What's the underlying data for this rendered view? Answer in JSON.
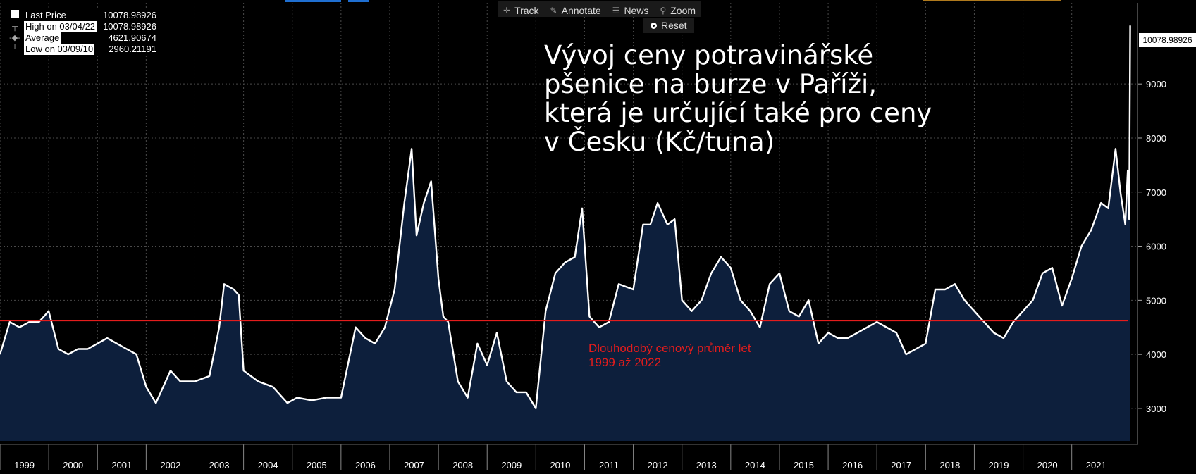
{
  "toolbar": {
    "track_label": "Track",
    "annotate_label": "Annotate",
    "news_label": "News",
    "zoom_label": "Zoom",
    "reset_label": "Reset"
  },
  "legend": {
    "items": [
      {
        "label": "Last Price",
        "value": "10078.98926"
      },
      {
        "label": "High on 03/04/22",
        "value": "10078.98926"
      },
      {
        "label": "Average",
        "value": "4621.90674"
      },
      {
        "label": "Low on 03/09/10",
        "value": "2960.21191"
      }
    ]
  },
  "title_text": "Vývoj ceny potravinářské\npšenice na burze v Paříži,\nkterá je určující také pro ceny\nv Česku (Kč/tuna)",
  "avg_annotation": "Dlouhodobý cenový průměr let\n1999 až 2022",
  "last_price_flag": "10078.98926",
  "colors": {
    "background": "#000000",
    "line": "#ffffff",
    "area": "#0d1f3c",
    "average": "#e41c1c",
    "grid": "#4a4a4a"
  },
  "chart_data": {
    "type": "area",
    "x_unit": "year",
    "xlim": [
      1999,
      2022.35
    ],
    "ylim": [
      2400,
      10500
    ],
    "yticks": [
      3000,
      4000,
      5000,
      6000,
      7000,
      8000,
      9000
    ],
    "ytick_labels": [
      "3000",
      "4000",
      "5000",
      "6000",
      "7000",
      "8000",
      "9000"
    ],
    "xtick_labels": [
      "1999",
      "2000",
      "2001",
      "2002",
      "2003",
      "2004",
      "2005",
      "2006",
      "2007",
      "2008",
      "2009",
      "2010",
      "2011",
      "2012",
      "2013",
      "2014",
      "2015",
      "2016",
      "2017",
      "2018",
      "2019",
      "2020",
      "2021"
    ],
    "grid": true,
    "average": 4621.90674,
    "series": [
      {
        "x": [
          1999.0,
          1999.2,
          1999.4,
          1999.6,
          1999.8,
          2000.0,
          2000.2,
          2000.4,
          2000.6,
          2000.8,
          2001.0,
          2001.2,
          2001.4,
          2001.6,
          2001.8,
          2002.0,
          2002.2,
          2002.5,
          2002.7,
          2003.0,
          2003.3,
          2003.5,
          2003.6,
          2003.8,
          2003.9,
          2004.0,
          2004.3,
          2004.6,
          2004.9,
          2005.1,
          2005.4,
          2005.7,
          2006.0,
          2006.3,
          2006.5,
          2006.7,
          2006.9,
          2007.1,
          2007.3,
          2007.45,
          2007.55,
          2007.7,
          2007.85,
          2008.0,
          2008.1,
          2008.2,
          2008.4,
          2008.6,
          2008.8,
          2009.0,
          2009.2,
          2009.4,
          2009.6,
          2009.8,
          2010.0,
          2010.2,
          2010.4,
          2010.6,
          2010.8,
          2010.95,
          2011.1,
          2011.3,
          2011.5,
          2011.7,
          2012.0,
          2012.2,
          2012.35,
          2012.5,
          2012.7,
          2012.85,
          2013.0,
          2013.2,
          2013.4,
          2013.6,
          2013.8,
          2014.0,
          2014.2,
          2014.4,
          2014.6,
          2014.8,
          2015.0,
          2015.2,
          2015.4,
          2015.6,
          2015.8,
          2016.0,
          2016.2,
          2016.4,
          2016.6,
          2016.8,
          2017.0,
          2017.2,
          2017.4,
          2017.6,
          2017.8,
          2018.0,
          2018.2,
          2018.4,
          2018.6,
          2018.8,
          2019.0,
          2019.2,
          2019.4,
          2019.6,
          2019.8,
          2020.0,
          2020.2,
          2020.4,
          2020.6,
          2020.8,
          2021.0,
          2021.2,
          2021.4,
          2021.6,
          2021.75,
          2021.9,
          2022.0,
          2022.1,
          2022.15,
          2022.18,
          2022.2
        ],
        "y": [
          4000,
          4600,
          4500,
          4600,
          4600,
          4800,
          4100,
          4000,
          4100,
          4100,
          4200,
          4300,
          4200,
          4100,
          4000,
          3400,
          3100,
          3700,
          3500,
          3500,
          3600,
          4500,
          5300,
          5200,
          5100,
          3700,
          3500,
          3400,
          3100,
          3200,
          3150,
          3200,
          3200,
          4500,
          4300,
          4200,
          4500,
          5200,
          6800,
          7800,
          6200,
          6800,
          7200,
          5400,
          4700,
          4600,
          3500,
          3200,
          4200,
          3800,
          4400,
          3500,
          3300,
          3300,
          3000,
          4800,
          5500,
          5700,
          5800,
          6700,
          4700,
          4500,
          4600,
          5300,
          5200,
          6400,
          6400,
          6800,
          6400,
          6500,
          5000,
          4800,
          5000,
          5500,
          5800,
          5600,
          5000,
          4800,
          4500,
          5300,
          5500,
          4800,
          4700,
          5000,
          4200,
          4400,
          4300,
          4300,
          4400,
          4500,
          4600,
          4500,
          4400,
          4000,
          4100,
          4200,
          5200,
          5200,
          5300,
          5000,
          4800,
          4600,
          4400,
          4300,
          4600,
          4800,
          5000,
          5500,
          5600,
          4900,
          5400,
          6000,
          6300,
          6800,
          6700,
          7800,
          7000,
          6400,
          7400,
          6500,
          10078.98926
        ]
      }
    ],
    "legend": [
      "Last Price",
      "High on 03/04/22",
      "Average",
      "Low on 03/09/10"
    ]
  }
}
